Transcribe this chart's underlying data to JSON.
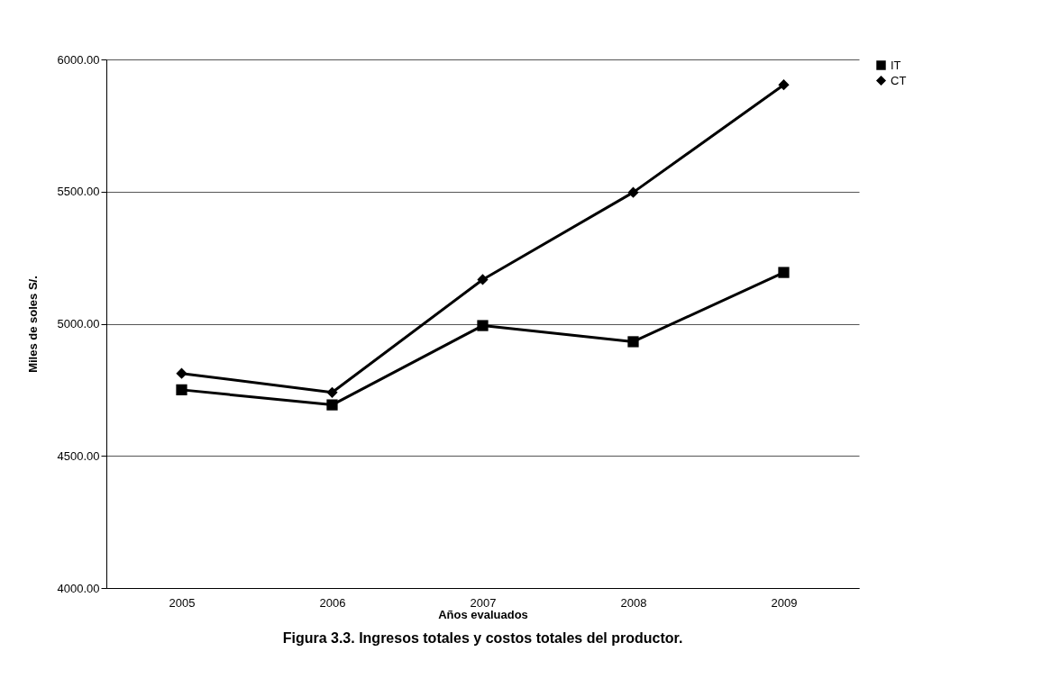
{
  "chart_data": {
    "type": "line",
    "title": "Figura 3.3. Ingresos totales y costos totales del productor.",
    "xlabel": "Años evaluados",
    "ylabel": "Miles de soles  S/.",
    "categories": [
      "2005",
      "2006",
      "2007",
      "2008",
      "2009"
    ],
    "series": [
      {
        "name": "IT",
        "color": "#000000",
        "marker": "square",
        "values": [
          4750,
          4693,
          4993,
          4932,
          5194
        ]
      },
      {
        "name": "CT",
        "color": "#000000",
        "marker": "diamond",
        "values": [
          4812,
          4740,
          5167,
          5497,
          5904
        ]
      }
    ],
    "ylim": [
      4000,
      6000
    ],
    "yticks": [
      {
        "value": 4000,
        "label": "4000.00"
      },
      {
        "value": 4500,
        "label": "4500.00"
      },
      {
        "value": 5000,
        "label": "5000.00"
      },
      {
        "value": 5500,
        "label": "5500.00"
      },
      {
        "value": 6000,
        "label": "6000.00"
      }
    ],
    "grid": "y",
    "legend": "right",
    "line_style": "solid"
  }
}
